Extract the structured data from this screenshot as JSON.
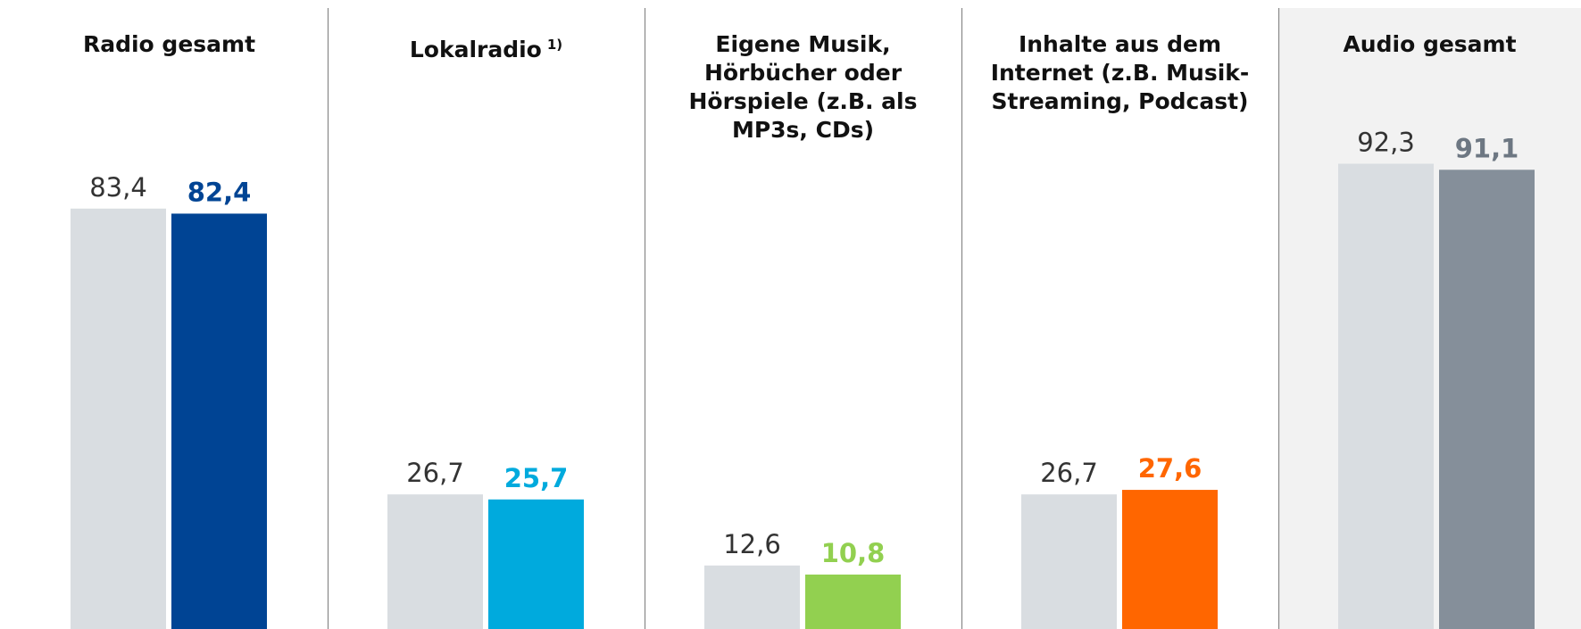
{
  "chart_data": {
    "type": "bar",
    "categories": [
      "Radio gesamt",
      "Lokalradio",
      "Eigene Musik, Hörbücher oder Hörspiele (z.B. als MP3s, CDs)",
      "Inhalte aus dem Internet (z.B. Musik-Streaming, Podcast)",
      "Audio gesamt"
    ],
    "category_footnotes": [
      null,
      "1)",
      null,
      null,
      null
    ],
    "series": [
      {
        "color": "#d9dde1",
        "values": [
          83.4,
          26.7,
          12.6,
          26.7,
          92.3
        ],
        "value_labels": [
          "83,4",
          "26,7",
          "12,6",
          "26,7",
          "92,3"
        ]
      },
      {
        "colors": [
          "#004494",
          "#00aadd",
          "#92d050",
          "#ff6600",
          "#858f9a"
        ],
        "values": [
          82.4,
          25.7,
          10.8,
          27.6,
          91.1
        ],
        "value_labels": [
          "82,4",
          "25,7",
          "10,8",
          "27,6",
          "91,1"
        ]
      }
    ],
    "highlight_background": [
      false,
      false,
      false,
      false,
      true
    ]
  }
}
